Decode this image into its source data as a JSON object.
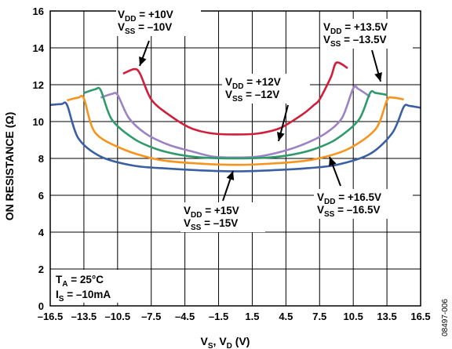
{
  "figure_id": "08497-006",
  "chart_data": {
    "type": "line",
    "xlabel": "VS, VD (V)",
    "ylabel": "ON RESISTANCE (Ω)",
    "xlim": [
      -16.5,
      16.5
    ],
    "ylim": [
      0,
      16
    ],
    "x_ticks": [
      "–16.5",
      "–13.5",
      "–10.5",
      "–7.5",
      "–4.5",
      "–1.5",
      "1.5",
      "4.5",
      "7.5",
      "10.5",
      "13.5",
      "16.5"
    ],
    "y_ticks": [
      "0",
      "2",
      "4",
      "6",
      "8",
      "10",
      "12",
      "14",
      "16"
    ],
    "grid": true,
    "conditions": {
      "ta": "TA = 25°C",
      "is": "IS = –10mA"
    },
    "series": [
      {
        "name": "VDD = +10V, VSS = –10V",
        "color": "#d01f3c",
        "x": [
          -10,
          -9,
          -8.5,
          -7.5,
          -6,
          -4,
          -2,
          0,
          2,
          4,
          6,
          7,
          7.5,
          8.5,
          9,
          10
        ],
        "y": [
          12.6,
          12.85,
          12.6,
          11.2,
          10.4,
          9.65,
          9.35,
          9.3,
          9.35,
          9.65,
          10.4,
          10.9,
          11.2,
          12.4,
          13.2,
          12.9
        ]
      },
      {
        "name": "VDD = +12V, VSS = –12V",
        "color": "#9b83c4",
        "x": [
          -12,
          -11,
          -10.5,
          -9.5,
          -8,
          -6,
          -4,
          -2,
          0,
          2,
          4,
          6,
          8,
          9.5,
          10.5,
          11,
          12
        ],
        "y": [
          11.3,
          11.5,
          11.45,
          10.2,
          9.35,
          8.75,
          8.4,
          8.1,
          8.05,
          8.1,
          8.35,
          8.75,
          9.35,
          10.2,
          11.8,
          11.75,
          11.35
        ]
      },
      {
        "name": "VDD = +13.5V, VSS = –13.5V",
        "color": "#2e9b6b",
        "x": [
          -13.5,
          -12.5,
          -12,
          -11,
          -9,
          -7,
          -5,
          -3,
          0,
          3,
          5,
          7,
          9,
          11,
          12,
          12.5,
          13.5
        ],
        "y": [
          11.55,
          11.75,
          11.7,
          10.1,
          9.05,
          8.5,
          8.2,
          8.05,
          8.0,
          8.05,
          8.2,
          8.5,
          9.05,
          10.1,
          11.55,
          11.55,
          11.45
        ]
      },
      {
        "name": "VDD = +15V, VSS = –15V",
        "color": "#f7941d",
        "x": [
          -15,
          -14,
          -13.5,
          -12.5,
          -10,
          -7,
          -4,
          0,
          4,
          7,
          10,
          12.5,
          13.5,
          14,
          15
        ],
        "y": [
          11.15,
          11.3,
          11.25,
          9.4,
          8.5,
          7.95,
          7.75,
          7.65,
          7.75,
          7.95,
          8.5,
          9.6,
          11.15,
          11.3,
          11.2
        ]
      },
      {
        "name": "VDD = +16.5V, VSS = –16.5V",
        "color": "#3a5fa3",
        "x": [
          -16.5,
          -15.5,
          -15,
          -14,
          -12,
          -9,
          -6,
          -3,
          0,
          3,
          6,
          9,
          12,
          14,
          15,
          15.5,
          16.5
        ],
        "y": [
          10.9,
          10.95,
          10.9,
          9.1,
          8.1,
          7.6,
          7.45,
          7.35,
          7.3,
          7.35,
          7.45,
          7.65,
          8.25,
          9.4,
          10.8,
          10.85,
          10.75
        ]
      }
    ],
    "annotations": [
      {
        "vdd": "+10V",
        "vss": "–10V"
      },
      {
        "vdd": "+13.5V",
        "vss": "–13.5V"
      },
      {
        "vdd": "+12V",
        "vss": "–12V"
      },
      {
        "vdd": "+15V",
        "vss": "–15V"
      },
      {
        "vdd": "+16.5V",
        "vss": "–16.5V"
      }
    ]
  }
}
